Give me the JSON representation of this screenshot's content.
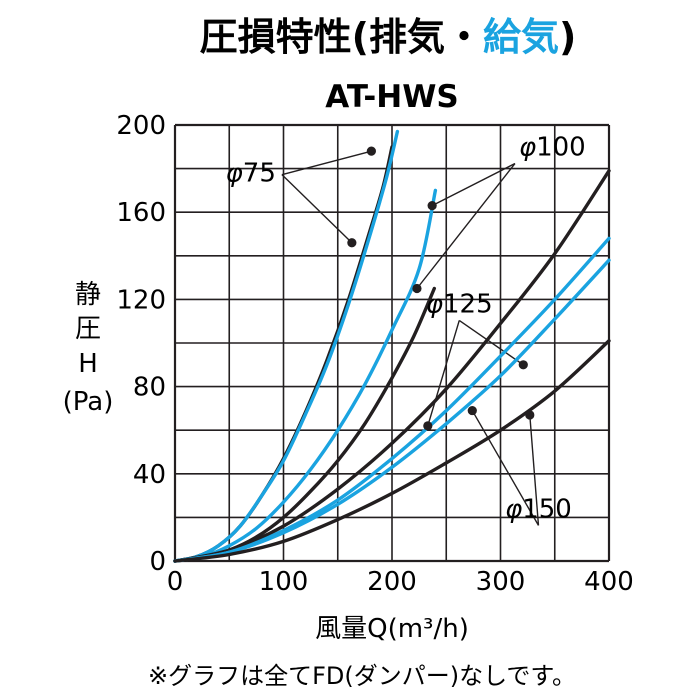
{
  "chart_data": {
    "type": "line",
    "title": {
      "prefix": "圧損特性(排気・",
      "highlight": "給気",
      "suffix": ")",
      "highlight_color": "#1aa3e0"
    },
    "subtitle": "AT-HWS",
    "xlabel": "風量Q(m³/h)",
    "ylabel": [
      "静",
      "圧",
      "H",
      "(Pa)"
    ],
    "xlim": [
      0,
      400
    ],
    "ylim": [
      0,
      200
    ],
    "x_ticks": [
      0,
      100,
      200,
      300,
      400
    ],
    "y_ticks": [
      0,
      40,
      80,
      120,
      160,
      200
    ],
    "grid": true,
    "legend": "none",
    "footnote": "※グラフは全てFD(ダンパー)なしです。",
    "colors": {
      "exhaust": "#231f20",
      "supply": "#1aa3e0"
    },
    "series": [
      {
        "mode": "exhaust",
        "label_ref": "φ75",
        "points": [
          [
            0,
            0
          ],
          [
            20,
            2
          ],
          [
            40,
            7
          ],
          [
            60,
            16
          ],
          [
            80,
            30
          ],
          [
            100,
            47
          ],
          [
            120,
            68
          ],
          [
            140,
            92
          ],
          [
            160,
            120
          ],
          [
            180,
            152
          ],
          [
            192,
            172
          ],
          [
            200,
            190
          ]
        ],
        "marker": [
          163,
          146
        ]
      },
      {
        "mode": "supply",
        "label_ref": "φ75",
        "points": [
          [
            0,
            0
          ],
          [
            20,
            2
          ],
          [
            40,
            7
          ],
          [
            60,
            16
          ],
          [
            80,
            30
          ],
          [
            100,
            46
          ],
          [
            120,
            67
          ],
          [
            140,
            90
          ],
          [
            160,
            118
          ],
          [
            180,
            150
          ],
          [
            195,
            176
          ],
          [
            205,
            197
          ]
        ],
        "marker": [
          181,
          188
        ]
      },
      {
        "mode": "exhaust",
        "label_ref": "φ100",
        "points": [
          [
            0,
            0
          ],
          [
            25,
            1.5
          ],
          [
            50,
            5
          ],
          [
            75,
            11
          ],
          [
            100,
            20
          ],
          [
            125,
            32
          ],
          [
            150,
            46
          ],
          [
            175,
            63
          ],
          [
            200,
            84
          ],
          [
            220,
            103
          ],
          [
            239,
            125
          ]
        ],
        "marker": [
          223,
          125
        ]
      },
      {
        "mode": "supply",
        "label_ref": "φ100",
        "points": [
          [
            0,
            0
          ],
          [
            25,
            2
          ],
          [
            50,
            7
          ],
          [
            75,
            15
          ],
          [
            100,
            27
          ],
          [
            125,
            42
          ],
          [
            150,
            60
          ],
          [
            175,
            81
          ],
          [
            200,
            106
          ],
          [
            225,
            134
          ],
          [
            240,
            170
          ]
        ],
        "marker": [
          237,
          163
        ]
      },
      {
        "mode": "exhaust",
        "label_ref": "φ125",
        "points": [
          [
            0,
            0
          ],
          [
            50,
            5
          ],
          [
            100,
            16
          ],
          [
            150,
            33
          ],
          [
            200,
            54
          ],
          [
            250,
            79
          ],
          [
            300,
            109
          ],
          [
            350,
            141
          ],
          [
            400,
            179
          ]
        ],
        "marker": [
          233,
          62
        ]
      },
      {
        "mode": "supply",
        "label_ref": "φ125",
        "points": [
          [
            0,
            0
          ],
          [
            50,
            4
          ],
          [
            100,
            14
          ],
          [
            150,
            28
          ],
          [
            200,
            47
          ],
          [
            250,
            69
          ],
          [
            300,
            94
          ],
          [
            350,
            120
          ],
          [
            400,
            148
          ]
        ],
        "marker": [
          321,
          90
        ]
      },
      {
        "mode": "supply",
        "label_ref": "φ150",
        "points": [
          [
            0,
            0
          ],
          [
            50,
            4
          ],
          [
            100,
            13
          ],
          [
            150,
            26
          ],
          [
            200,
            43
          ],
          [
            250,
            63
          ],
          [
            300,
            85
          ],
          [
            350,
            111
          ],
          [
            400,
            138
          ]
        ],
        "marker": [
          274,
          69
        ]
      },
      {
        "mode": "exhaust",
        "label_ref": "φ150",
        "points": [
          [
            0,
            0
          ],
          [
            50,
            3
          ],
          [
            100,
            9
          ],
          [
            150,
            19
          ],
          [
            200,
            31
          ],
          [
            250,
            45
          ],
          [
            300,
            60
          ],
          [
            350,
            78
          ],
          [
            400,
            101
          ]
        ],
        "marker": [
          327,
          67
        ]
      }
    ],
    "annotations": [
      {
        "text": "φ75",
        "anchor": "right",
        "pos": [
          93,
          174
        ],
        "leaders": [
          [
            163,
            146
          ],
          [
            181,
            188
          ]
        ]
      },
      {
        "text": "φ100",
        "anchor": "left",
        "pos": [
          317,
          186
        ],
        "leaders": [
          [
            237,
            163
          ],
          [
            223,
            125
          ]
        ]
      },
      {
        "text": "φ125",
        "anchor": "middle",
        "pos": [
          262,
          114
        ],
        "leaders": [
          [
            233,
            62
          ],
          [
            321,
            90
          ]
        ]
      },
      {
        "text": "φ150",
        "anchor": "middle",
        "pos": [
          335,
          20
        ],
        "leaders": [
          [
            274,
            69
          ],
          [
            327,
            67
          ]
        ]
      }
    ]
  }
}
